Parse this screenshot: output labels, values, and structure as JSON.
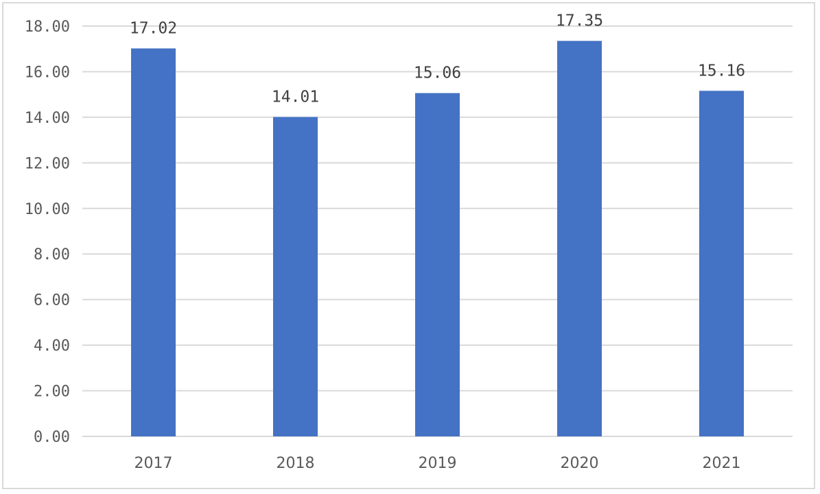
{
  "chart_data": {
    "type": "bar",
    "categories": [
      "2017",
      "2018",
      "2019",
      "2020",
      "2021"
    ],
    "values": [
      17.02,
      14.01,
      15.06,
      17.35,
      15.16
    ],
    "data_labels": [
      "17.02",
      "14.01",
      "15.06",
      "17.35",
      "15.16"
    ],
    "y_ticks": [
      "0.00",
      "2.00",
      "4.00",
      "6.00",
      "8.00",
      "10.00",
      "12.00",
      "14.00",
      "16.00",
      "18.00"
    ],
    "ylim": [
      0,
      18
    ],
    "grid": true,
    "bar_color": "#4472c4",
    "grid_color": "#d9d9d9",
    "title": "",
    "xlabel": "",
    "ylabel": ""
  }
}
